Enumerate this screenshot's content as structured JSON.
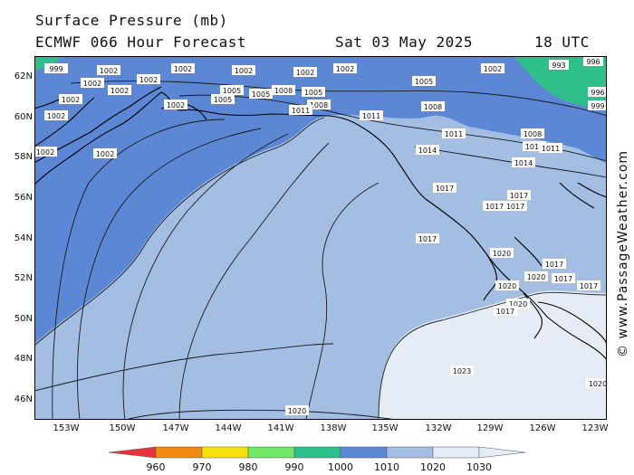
{
  "header": {
    "title": "Surface Pressure (mb)",
    "model": "ECMWF 066 Hour Forecast",
    "date": "Sat 03 May 2025",
    "time": "18 UTC"
  },
  "credit": "© www.PassageWeather.com",
  "axes": {
    "lat_ticks": [
      "62N",
      "60N",
      "58N",
      "56N",
      "54N",
      "52N",
      "50N",
      "48N",
      "46N"
    ],
    "lon_ticks": [
      "153W",
      "150W",
      "147W",
      "144W",
      "141W",
      "138W",
      "135W",
      "132W",
      "129W",
      "126W",
      "123W"
    ]
  },
  "legend": {
    "levels": [
      "960",
      "970",
      "980",
      "990",
      "1000",
      "1010",
      "1020",
      "1030"
    ],
    "colors": [
      "#e8333a",
      "#f28a0e",
      "#f6e10c",
      "#6fe86a",
      "#2fbf8a",
      "#5b87d4",
      "#a3bde3",
      "#e6ecf6"
    ]
  },
  "map_colors": {
    "band_1000_1010": "#5b87d4",
    "band_1010_1020": "#a3bde3",
    "band_1020_1030": "#e6ecf6",
    "band_990_1000": "#2fbf8a",
    "coastline": "#000000",
    "isobar": "#1a1a1a"
  },
  "isobar_labels": [
    {
      "text": "999"
    },
    {
      "text": "1002"
    },
    {
      "text": "1002"
    },
    {
      "text": "1002"
    },
    {
      "text": "1002"
    },
    {
      "text": "1002"
    },
    {
      "text": "1002"
    },
    {
      "text": "1002"
    },
    {
      "text": "1002"
    },
    {
      "text": "1002"
    },
    {
      "text": "1002"
    },
    {
      "text": "1002"
    },
    {
      "text": "1002"
    },
    {
      "text": "1002"
    },
    {
      "text": "1002"
    },
    {
      "text": "1005"
    },
    {
      "text": "1005"
    },
    {
      "text": "1005"
    },
    {
      "text": "1005"
    },
    {
      "text": "1005"
    },
    {
      "text": "1008"
    },
    {
      "text": "1008"
    },
    {
      "text": "1008"
    },
    {
      "text": "1008"
    },
    {
      "text": "1011"
    },
    {
      "text": "1011"
    },
    {
      "text": "1011"
    },
    {
      "text": "1011"
    },
    {
      "text": "1014"
    },
    {
      "text": "1014"
    },
    {
      "text": "1017"
    },
    {
      "text": "1017"
    },
    {
      "text": "1017"
    },
    {
      "text": "1017"
    },
    {
      "text": "1017"
    },
    {
      "text": "1017"
    },
    {
      "text": "1017"
    },
    {
      "text": "1020"
    },
    {
      "text": "1020"
    },
    {
      "text": "1020"
    },
    {
      "text": "1020"
    },
    {
      "text": "1020"
    },
    {
      "text": "1023"
    },
    {
      "text": "993"
    },
    {
      "text": "996"
    },
    {
      "text": "996"
    },
    {
      "text": "999"
    },
    {
      "text": "1011"
    },
    {
      "text": "1017"
    },
    {
      "text": "1017"
    },
    {
      "text": "1020"
    }
  ]
}
